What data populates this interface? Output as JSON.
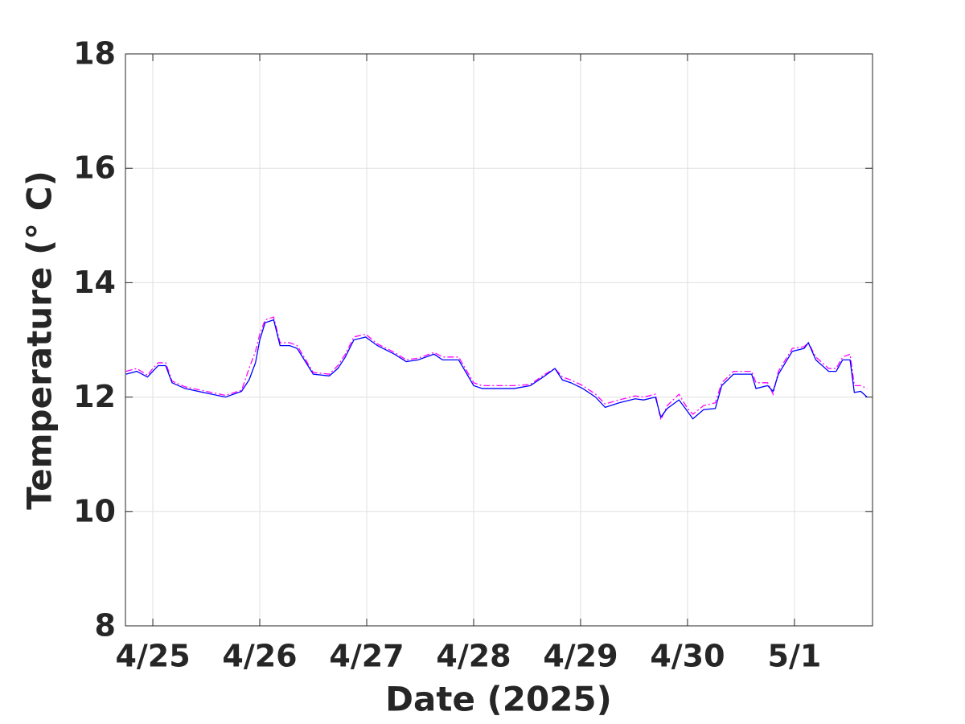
{
  "chart_data": {
    "type": "line",
    "xlabel": "Date (2025)",
    "ylabel": "Temperature (° C)",
    "x": [
      -0.25,
      -0.15,
      -0.05,
      0,
      0.05,
      0.12,
      0.18,
      0.3,
      0.5,
      0.68,
      0.83,
      0.9,
      0.96,
      1.0,
      1.05,
      1.13,
      1.19,
      1.28,
      1.35,
      1.5,
      1.65,
      1.73,
      1.8,
      1.88,
      1.99,
      2.1,
      2.26,
      2.37,
      2.48,
      2.63,
      2.71,
      2.86,
      3.0,
      3.08,
      3.23,
      3.38,
      3.53,
      3.65,
      3.76,
      3.83,
      3.91,
      4.02,
      4.14,
      4.23,
      4.36,
      4.51,
      4.59,
      4.7,
      4.75,
      4.81,
      4.92,
      5.0,
      5.05,
      5.15,
      5.26,
      5.32,
      5.43,
      5.53,
      5.6,
      5.64,
      5.75,
      5.8,
      5.85,
      5.98,
      6.09,
      6.13,
      6.2,
      6.32,
      6.39,
      6.45,
      6.52,
      6.56,
      6.62,
      6.68
    ],
    "series": [
      {
        "color": "#0000ff",
        "dash": "solid",
        "values": [
          12.4,
          12.45,
          12.35,
          12.45,
          12.55,
          12.55,
          12.25,
          12.15,
          12.07,
          12.0,
          12.1,
          12.3,
          12.6,
          13.0,
          13.3,
          13.35,
          12.9,
          12.9,
          12.85,
          12.4,
          12.37,
          12.5,
          12.7,
          13.0,
          13.05,
          12.9,
          12.75,
          12.62,
          12.65,
          12.75,
          12.65,
          12.65,
          12.2,
          12.15,
          12.15,
          12.15,
          12.2,
          12.35,
          12.5,
          12.3,
          12.25,
          12.15,
          12.0,
          11.82,
          11.9,
          11.97,
          11.95,
          12.0,
          11.65,
          11.8,
          11.95,
          11.75,
          11.62,
          11.78,
          11.8,
          12.2,
          12.4,
          12.4,
          12.4,
          12.15,
          12.2,
          12.1,
          12.4,
          12.8,
          12.85,
          12.95,
          12.65,
          12.45,
          12.45,
          12.65,
          12.65,
          12.08,
          12.1,
          12.0
        ]
      },
      {
        "color": "#ff00ff",
        "dash": "dashdot",
        "values": [
          12.45,
          12.5,
          12.38,
          12.5,
          12.6,
          12.6,
          12.28,
          12.18,
          12.1,
          12.03,
          12.12,
          12.5,
          12.8,
          13.1,
          13.35,
          13.4,
          12.95,
          12.95,
          12.9,
          12.43,
          12.4,
          12.55,
          12.75,
          13.05,
          13.1,
          12.93,
          12.78,
          12.65,
          12.68,
          12.78,
          12.7,
          12.7,
          12.25,
          12.2,
          12.2,
          12.2,
          12.22,
          12.38,
          12.5,
          12.35,
          12.3,
          12.2,
          12.05,
          11.88,
          11.95,
          12.02,
          12.0,
          12.05,
          11.6,
          11.85,
          12.05,
          11.8,
          11.7,
          11.85,
          11.9,
          12.25,
          12.45,
          12.45,
          12.45,
          12.25,
          12.25,
          12.05,
          12.45,
          12.85,
          12.88,
          12.95,
          12.7,
          12.5,
          12.5,
          12.7,
          12.75,
          12.2,
          12.2,
          12.15
        ]
      }
    ],
    "xlim": [
      -0.256,
      6.73
    ],
    "ylim": [
      8,
      18
    ],
    "xticks": [
      {
        "value": 0,
        "label": "4/25"
      },
      {
        "value": 1,
        "label": "4/26"
      },
      {
        "value": 2,
        "label": "4/27"
      },
      {
        "value": 3,
        "label": "4/28"
      },
      {
        "value": 4,
        "label": "4/29"
      },
      {
        "value": 5,
        "label": "4/30"
      },
      {
        "value": 6,
        "label": "5/1"
      }
    ],
    "yticks": [
      8,
      10,
      12,
      14,
      16,
      18
    ],
    "grid": true
  }
}
